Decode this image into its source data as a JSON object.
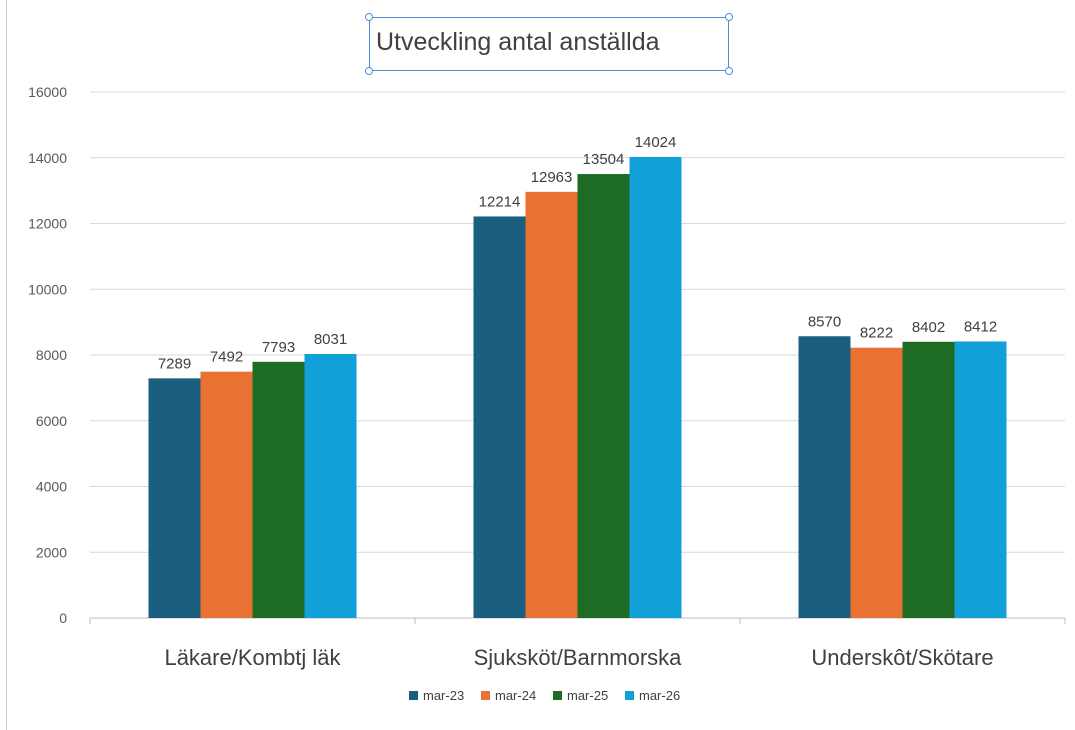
{
  "chart_data": {
    "type": "bar",
    "title": "Utveckling antal anställda",
    "categories": [
      "Läkare/Kombtj läk",
      "Sjuksköt/Barnmorska",
      "Underskôt/Skötare"
    ],
    "series": [
      {
        "name": "mar-23",
        "color": "#1a5e80",
        "values": [
          7289,
          12214,
          8570
        ]
      },
      {
        "name": "mar-24",
        "color": "#e97132",
        "values": [
          7492,
          12963,
          8222
        ]
      },
      {
        "name": "mar-25",
        "color": "#1e6b24",
        "values": [
          7793,
          13504,
          8402
        ]
      },
      {
        "name": "mar-26",
        "color": "#11a0d8",
        "values": [
          8031,
          14024,
          8412
        ]
      }
    ],
    "ylim": [
      0,
      16000
    ],
    "yticks": [
      0,
      2000,
      4000,
      6000,
      8000,
      10000,
      12000,
      14000,
      16000
    ],
    "xlabel": "",
    "ylabel": "",
    "grid": true,
    "legend_position": "bottom",
    "data_labels": true
  }
}
